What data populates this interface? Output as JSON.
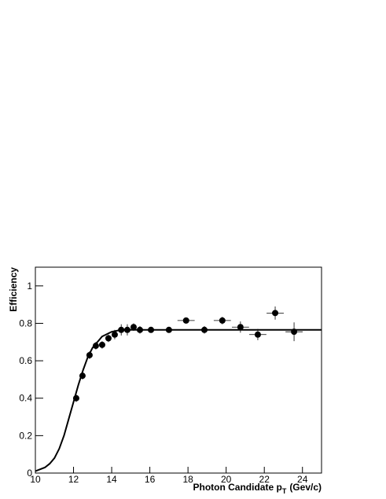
{
  "chart_data": {
    "type": "scatter",
    "x_label": "Photon Candidate p",
    "x_label_sub": "T",
    "x_label_unit": "(Gev/c)",
    "y_label": "Efficiency",
    "x": [
      12.14,
      12.47,
      12.84,
      13.17,
      13.5,
      13.83,
      14.16,
      14.5,
      14.82,
      15.15,
      15.48,
      16.06,
      17.0,
      17.9,
      18.86,
      19.8,
      20.75,
      21.66,
      22.57,
      23.56
    ],
    "xerr": [
      0.15,
      0.15,
      0.15,
      0.15,
      0.15,
      0.15,
      0.15,
      0.15,
      0.15,
      0.15,
      0.15,
      0.3,
      0.45,
      0.45,
      0.45,
      0.45,
      0.45,
      0.45,
      0.45,
      0.45
    ],
    "values": [
      0.4,
      0.52,
      0.63,
      0.68,
      0.685,
      0.72,
      0.74,
      0.765,
      0.765,
      0.78,
      0.765,
      0.765,
      0.765,
      0.815,
      0.765,
      0.815,
      0.78,
      0.74,
      0.855,
      0.755
    ],
    "yerr": [
      0.02,
      0.02,
      0.02,
      0.02,
      0.02,
      0.02,
      0.025,
      0.03,
      0.03,
      0.02,
      0.02,
      0.01,
      0.01,
      0.015,
      0.02,
      0.02,
      0.03,
      0.03,
      0.035,
      0.05
    ],
    "color": "#000000",
    "fit": {
      "x": [
        10,
        10.25,
        10.5,
        10.75,
        11,
        11.25,
        11.5,
        11.75,
        12,
        12.25,
        12.5,
        12.75,
        13,
        13.5,
        14,
        14.5,
        15,
        25
      ],
      "y": [
        0.01,
        0.02,
        0.03,
        0.05,
        0.08,
        0.13,
        0.2,
        0.29,
        0.38,
        0.47,
        0.55,
        0.62,
        0.67,
        0.73,
        0.755,
        0.765,
        0.765,
        0.765
      ]
    },
    "xlim": [
      10,
      25
    ],
    "ylim": [
      0,
      1.1
    ],
    "xticks": [
      10,
      12,
      14,
      16,
      18,
      20,
      22,
      24
    ],
    "yticks": [
      0,
      0.2,
      0.4,
      0.6,
      0.8,
      1
    ]
  }
}
